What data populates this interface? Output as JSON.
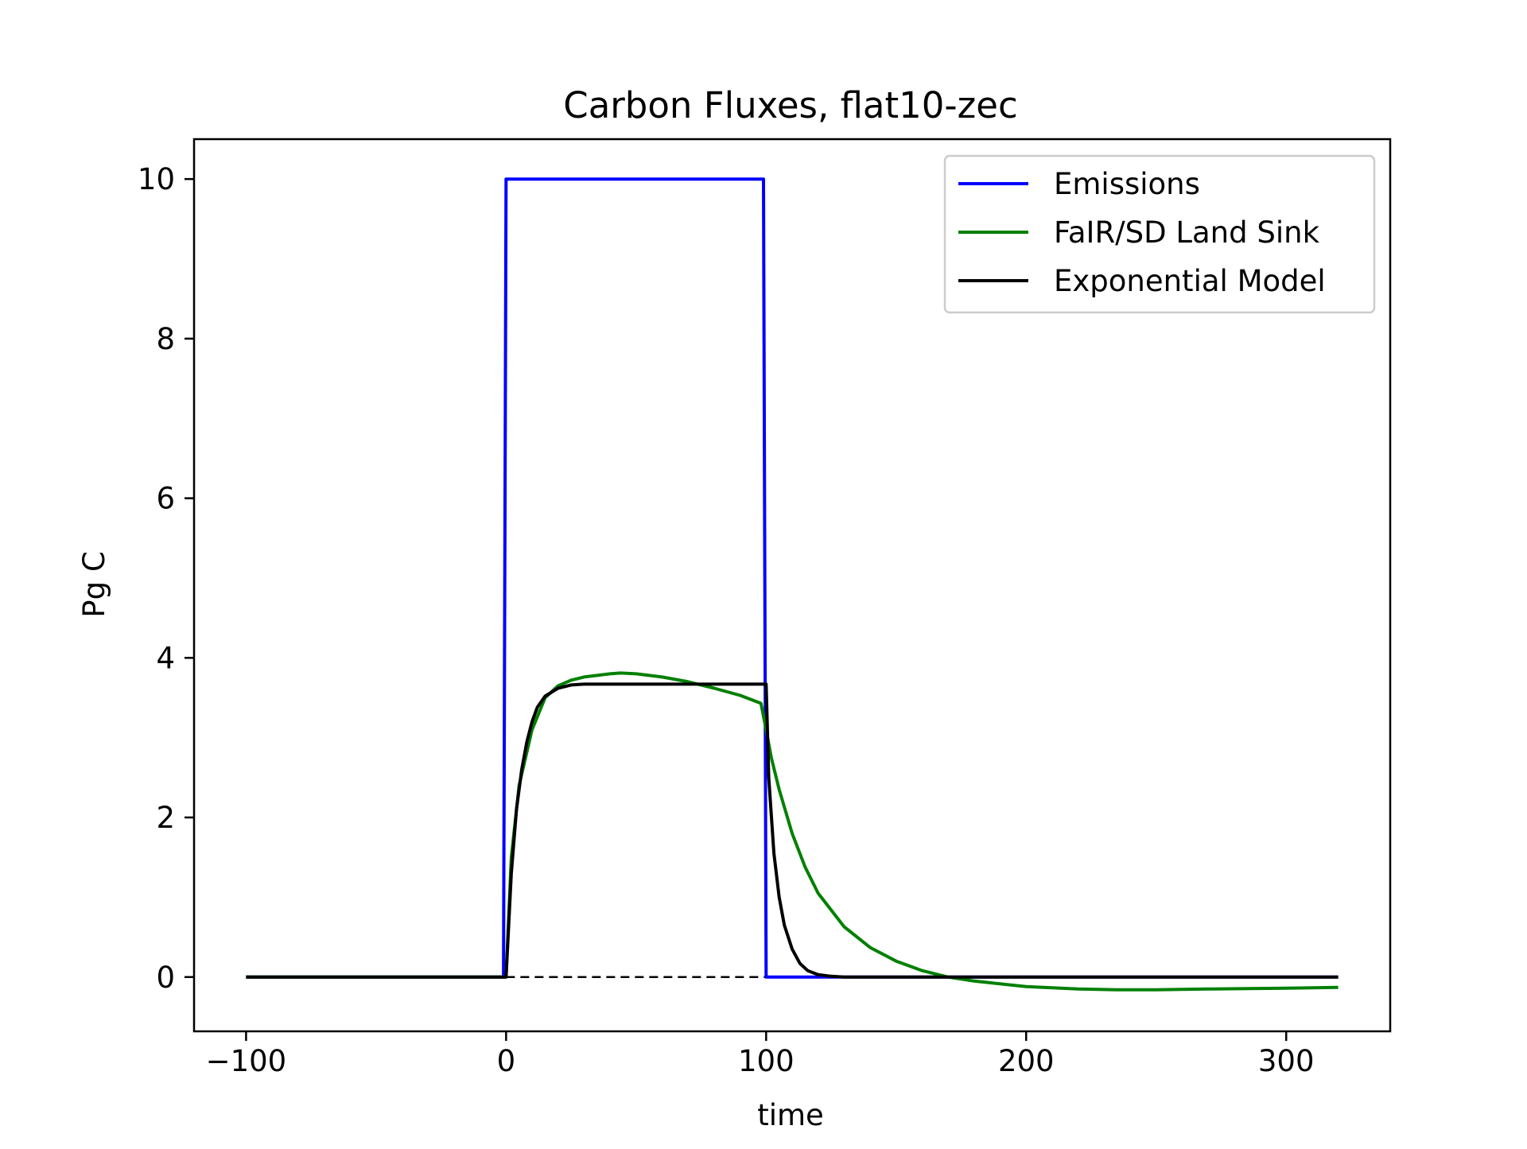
{
  "chart_data": {
    "type": "line",
    "title": "Carbon Fluxes, flat10-zec",
    "xlabel": "time",
    "ylabel": "Pg C",
    "xlim": [
      -120,
      340
    ],
    "ylim": [
      -0.68,
      10.5
    ],
    "xticks": [
      -100,
      0,
      100,
      200,
      300
    ],
    "xtick_labels": [
      "−100",
      "0",
      "100",
      "200",
      "300"
    ],
    "yticks": [
      0,
      2,
      4,
      6,
      8,
      10
    ],
    "ytick_labels": [
      "0",
      "2",
      "4",
      "6",
      "8",
      "10"
    ],
    "grid": false,
    "legend_position": "top-right",
    "zero_line": {
      "style": "dashed",
      "color": "#000000",
      "x": [
        0,
        100
      ],
      "y": 0
    },
    "series": [
      {
        "name": "Emissions",
        "color": "#0000ff",
        "x": [
          -100,
          -1,
          0,
          99,
          100,
          320
        ],
        "y": [
          0,
          0,
          10,
          10,
          0,
          0
        ]
      },
      {
        "name": "FaIR/SD Land Sink",
        "color": "#008000",
        "x": [
          -100,
          -1,
          0,
          2,
          5,
          10,
          15,
          20,
          25,
          30,
          40,
          44,
          50,
          60,
          70,
          80,
          90,
          98,
          100,
          102,
          105,
          110,
          115,
          120,
          130,
          140,
          150,
          160,
          170,
          180,
          200,
          220,
          235,
          250,
          270,
          300,
          320
        ],
        "y": [
          0,
          0,
          0,
          1.5,
          2.4,
          3.1,
          3.5,
          3.65,
          3.72,
          3.76,
          3.8,
          3.81,
          3.8,
          3.76,
          3.7,
          3.62,
          3.53,
          3.43,
          3.1,
          2.75,
          2.35,
          1.8,
          1.38,
          1.05,
          0.63,
          0.37,
          0.2,
          0.08,
          0.0,
          -0.05,
          -0.12,
          -0.15,
          -0.16,
          -0.16,
          -0.15,
          -0.14,
          -0.13
        ]
      },
      {
        "name": "Exponential Model",
        "color": "#000000",
        "x": [
          -100,
          -1,
          0,
          2,
          4,
          6,
          8,
          10,
          12,
          15,
          20,
          25,
          30,
          50,
          70,
          90,
          99,
          100,
          101,
          103,
          105,
          107,
          110,
          113,
          116,
          120,
          125,
          130,
          140,
          160,
          200,
          250,
          320
        ],
        "y": [
          0,
          0,
          0,
          1.3,
          2.1,
          2.6,
          2.95,
          3.2,
          3.38,
          3.52,
          3.62,
          3.66,
          3.67,
          3.67,
          3.67,
          3.67,
          3.67,
          3.67,
          2.5,
          1.55,
          1.0,
          0.65,
          0.35,
          0.17,
          0.08,
          0.03,
          0.01,
          0.0,
          0.0,
          0.0,
          0.0,
          0.0,
          0.0
        ]
      }
    ]
  }
}
